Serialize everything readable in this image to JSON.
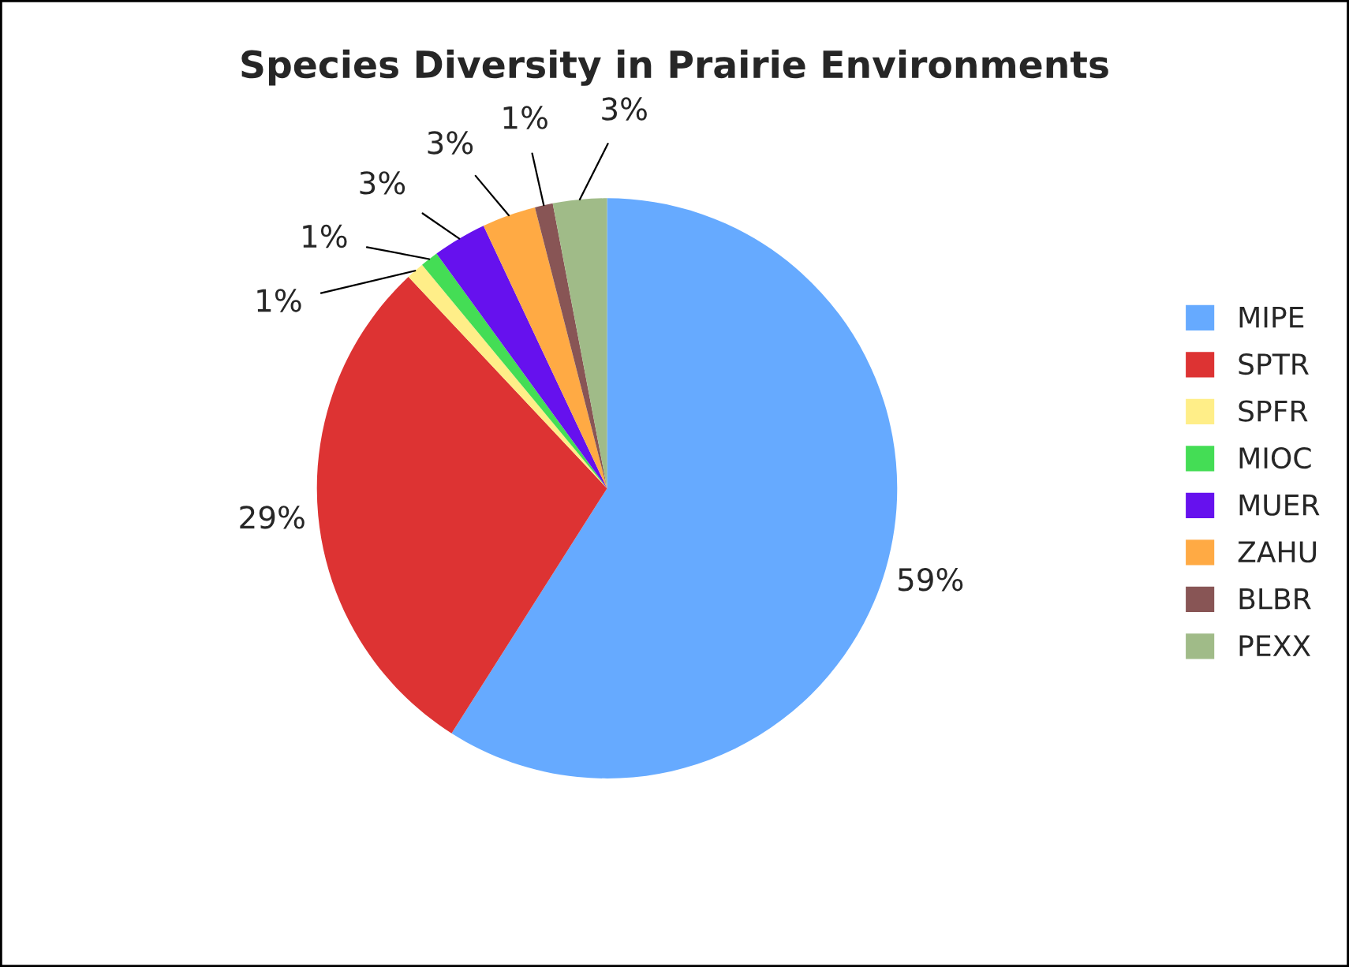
{
  "chart_data": {
    "type": "pie",
    "title": "Species Diversity in Prairie Environments",
    "categories": [
      "MIPE",
      "SPTR",
      "SPFR",
      "MIOC",
      "MUER",
      "ZAHU",
      "BLBR",
      "PEXX"
    ],
    "values": [
      59,
      29,
      1,
      1,
      3,
      3,
      1,
      3
    ],
    "value_labels": [
      "59%",
      "29%",
      "1%",
      "1%",
      "3%",
      "3%",
      "1%",
      "3%"
    ],
    "colors": [
      "#66aaff",
      "#dd3333",
      "#ffee88",
      "#44dd55",
      "#6611ee",
      "#ffaa44",
      "#885555",
      "#a0bb88"
    ],
    "legend": "right"
  }
}
